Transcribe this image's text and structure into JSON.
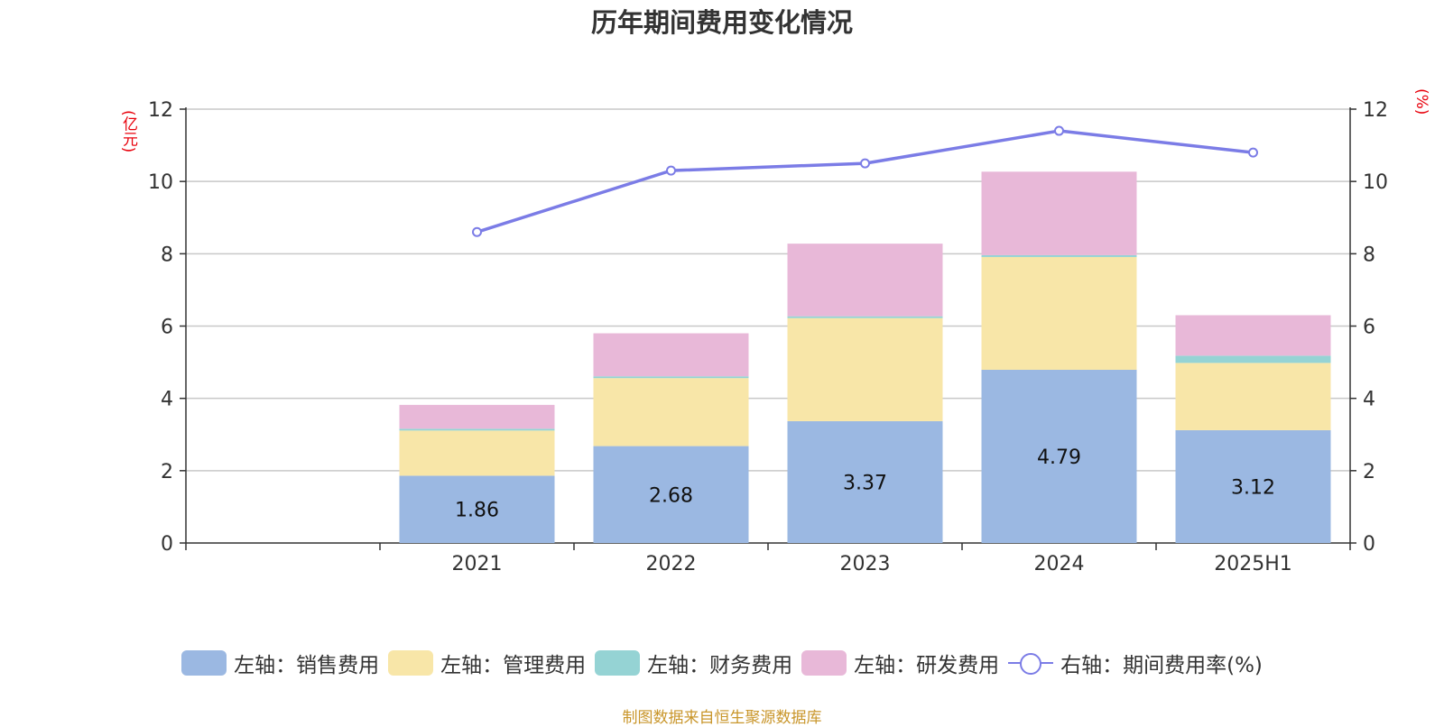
{
  "title": "历年期间费用变化情况",
  "unit_left": "(亿元)",
  "unit_right": "(%)",
  "source": "制图数据来自恒生聚源数据库",
  "chart_data": {
    "type": "bar",
    "stacked": true,
    "categories": [
      "",
      "2021",
      "2022",
      "2023",
      "2024",
      "2025H1"
    ],
    "series": [
      {
        "name": "左轴：销售费用",
        "axis": "left",
        "color": "#9bb8e2",
        "values": [
          null,
          1.86,
          2.68,
          3.37,
          4.79,
          3.12
        ],
        "labels": [
          "",
          "1.86",
          "2.68",
          "3.37",
          "4.79",
          "3.12"
        ]
      },
      {
        "name": "左轴：管理费用",
        "axis": "left",
        "color": "#f8e6a8",
        "values": [
          null,
          1.25,
          1.88,
          2.85,
          3.12,
          1.86
        ]
      },
      {
        "name": "左轴：财务费用",
        "axis": "left",
        "color": "#95d3d4",
        "values": [
          null,
          0.05,
          0.05,
          0.05,
          0.05,
          0.2
        ]
      },
      {
        "name": "左轴：研发费用",
        "axis": "left",
        "color": "#e8b8d8",
        "values": [
          null,
          0.66,
          1.19,
          2.01,
          2.31,
          1.12
        ]
      },
      {
        "name": "右轴：期间费用率(%)",
        "type": "line",
        "axis": "right",
        "color": "#7b7ce6",
        "values": [
          null,
          8.6,
          10.3,
          10.5,
          11.4,
          10.8
        ]
      }
    ],
    "y_left": {
      "min": 0,
      "max": 12,
      "ticks": [
        "0",
        "2",
        "4",
        "6",
        "8",
        "10",
        "12"
      ]
    },
    "y_right": {
      "min": 0,
      "max": 12,
      "ticks": [
        "0",
        "2",
        "4",
        "6",
        "8",
        "10",
        "12"
      ]
    },
    "grid": true,
    "legend_position": "bottom"
  }
}
